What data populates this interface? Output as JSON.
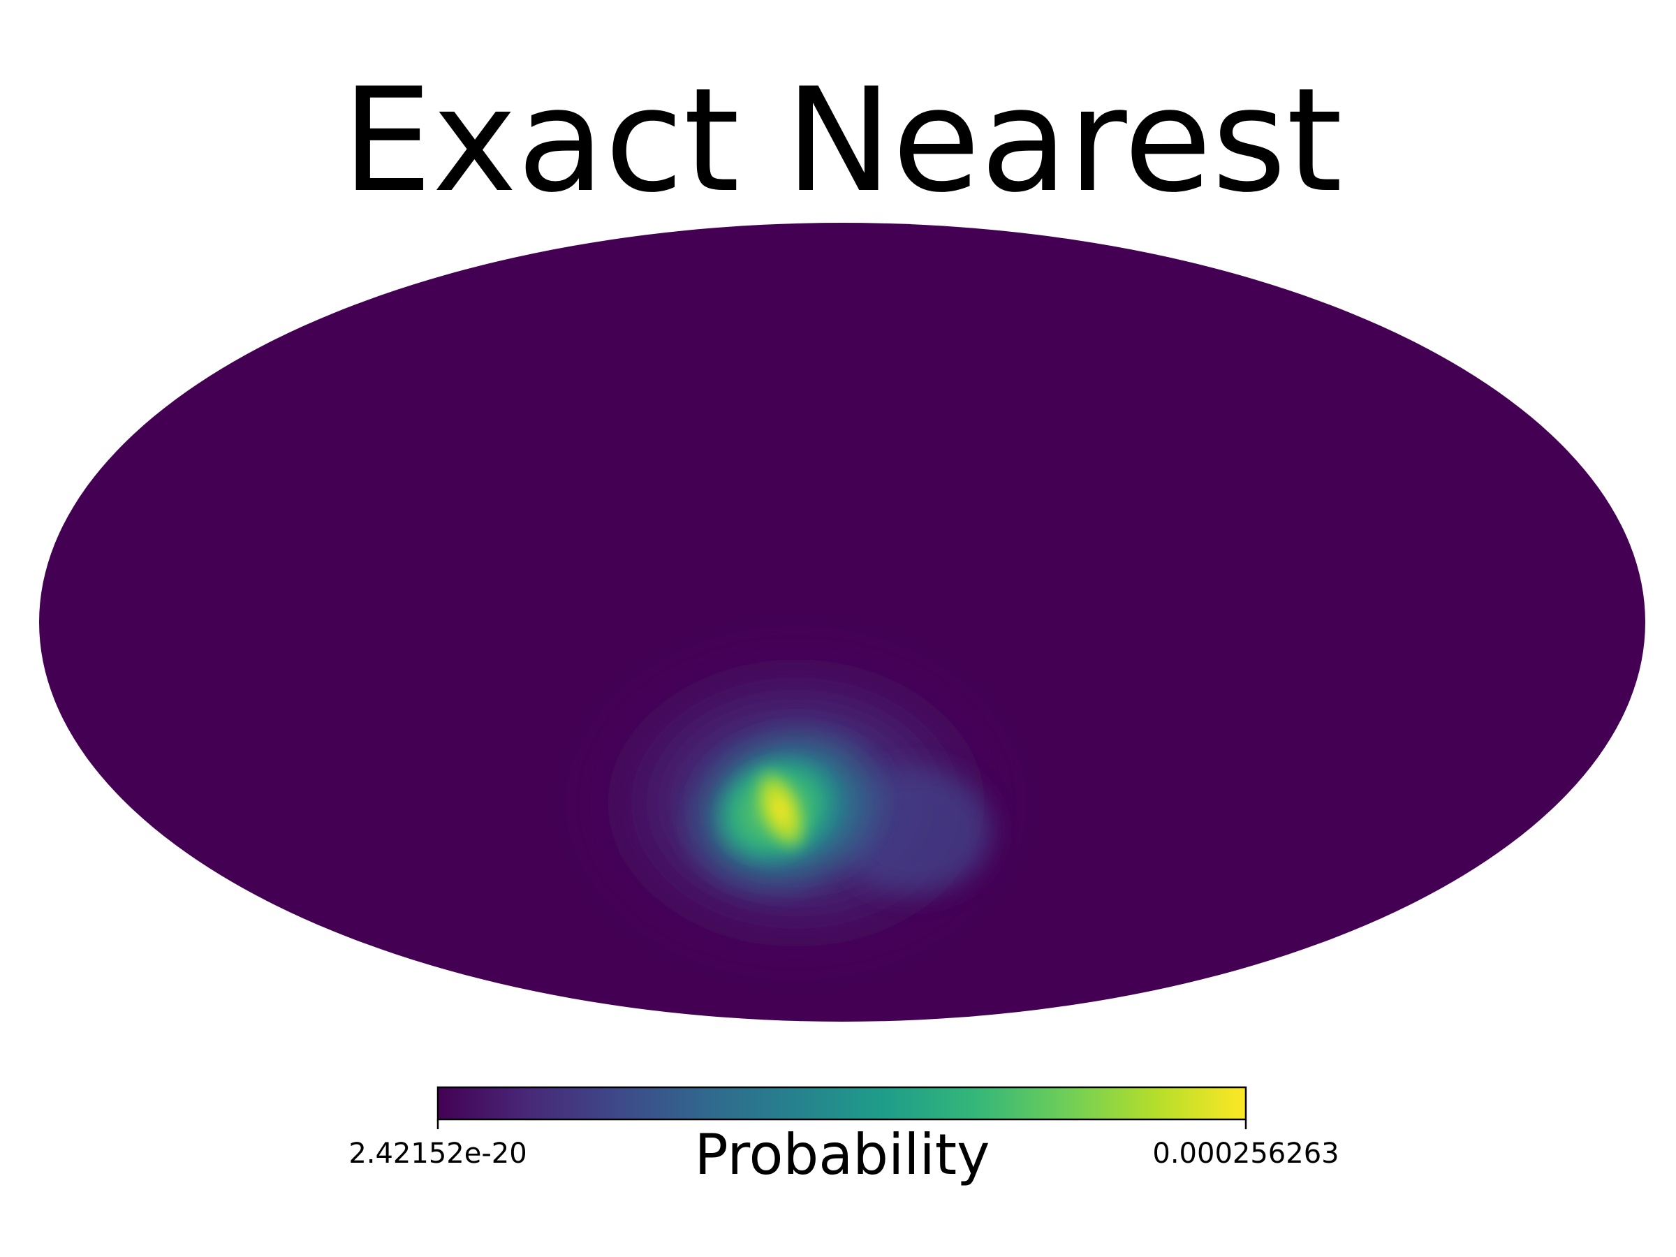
{
  "chart_data": {
    "type": "heatmap",
    "projection": "mollweide",
    "title": "Exact Nearest",
    "colormap": "viridis",
    "colormap_stops": [
      "#440154",
      "#482878",
      "#3e4989",
      "#31688e",
      "#26828e",
      "#1f9e89",
      "#35b779",
      "#6ece58",
      "#b5de2b",
      "#fde725"
    ],
    "colorbar": {
      "label": "Probability",
      "min_label": "2.42152e-20",
      "max_label": "0.000256263",
      "min": 2.42152e-20,
      "max": 0.000256263,
      "orientation": "horizontal",
      "placement": "bottom"
    },
    "background_color": "#440154",
    "hotspot": {
      "center_lon_deg": 10,
      "center_lat_deg": -35,
      "peak_value": 0.000256263,
      "description_shape": "elongated blob tilted from upper-left to lower-right"
    },
    "grid": false,
    "legend": "none"
  }
}
